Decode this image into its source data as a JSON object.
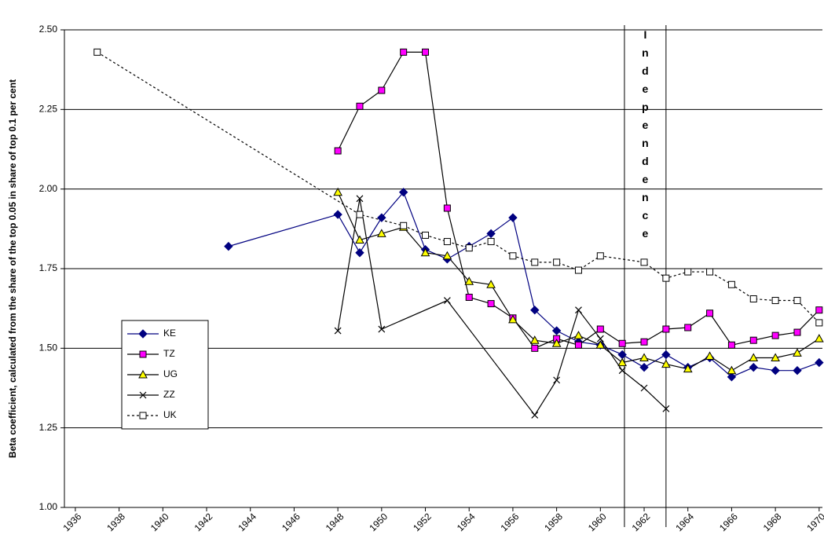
{
  "chart_data": {
    "type": "line",
    "y_label": "Beta coefficient, calculated from the share of the top 0.05 in share of top 0.1 per cent",
    "annotation": "Independence",
    "annotation_lines": [
      1961.1,
      1963
    ],
    "xlim": [
      1935.5,
      1970.15
    ],
    "xticks": [
      1936,
      1938,
      1940,
      1942,
      1944,
      1946,
      1948,
      1950,
      1952,
      1954,
      1956,
      1958,
      1960,
      1962,
      1964,
      1966,
      1968,
      1970
    ],
    "ylim": [
      1,
      2.5
    ],
    "yticks": [
      {
        "value": 1,
        "label": "1.00"
      },
      {
        "value": 1.25,
        "label": "1.25"
      },
      {
        "value": 1.5,
        "label": "1.50"
      },
      {
        "value": 1.75,
        "label": "1.75"
      },
      {
        "value": 2,
        "label": "2.00"
      },
      {
        "value": 2.25,
        "label": "2.25"
      },
      {
        "value": 2.5,
        "label": "2.50"
      }
    ],
    "grid": true,
    "series": [
      {
        "name": "KE",
        "color": "#000080",
        "marker": "diamond",
        "x": [
          1943,
          1948,
          1949,
          1950,
          1951,
          1952,
          1953,
          1954,
          1955,
          1956,
          1957,
          1958,
          1959,
          1960,
          1961,
          1962,
          1963,
          1964,
          1965,
          1966,
          1967,
          1968,
          1969,
          1970
        ],
        "values": [
          1.82,
          1.92,
          1.8,
          1.91,
          1.99,
          1.81,
          1.78,
          1.82,
          1.86,
          1.91,
          1.62,
          1.555,
          1.52,
          1.51,
          1.48,
          1.44,
          1.48,
          1.44,
          1.47,
          1.41,
          1.44,
          1.43,
          1.43,
          1.455
        ]
      },
      {
        "name": "TZ",
        "color": "#ff00ff",
        "marker": "square",
        "x": [
          1948,
          1949,
          1950,
          1951,
          1952,
          1953,
          1954,
          1955,
          1956,
          1957,
          1958,
          1959,
          1960,
          1961,
          1962,
          1963,
          1964,
          1965,
          1966,
          1967,
          1968,
          1969,
          1970
        ],
        "values": [
          2.12,
          2.26,
          2.31,
          2.43,
          2.43,
          1.94,
          1.66,
          1.64,
          1.595,
          1.5,
          1.53,
          1.51,
          1.56,
          1.515,
          1.52,
          1.56,
          1.565,
          1.61,
          1.51,
          1.525,
          1.54,
          1.55,
          1.62
        ]
      },
      {
        "name": "UG",
        "color": "#ffff00",
        "marker": "triangle",
        "x": [
          1948,
          1949,
          1950,
          1951,
          1952,
          1953,
          1954,
          1955,
          1956,
          1957,
          1958,
          1959,
          1960,
          1961,
          1962,
          1963,
          1964,
          1965,
          1966,
          1967,
          1968,
          1969,
          1970
        ],
        "values": [
          1.99,
          1.84,
          1.86,
          1.88,
          1.8,
          1.79,
          1.71,
          1.7,
          1.59,
          1.525,
          1.515,
          1.54,
          1.51,
          1.455,
          1.47,
          1.45,
          1.435,
          1.475,
          1.43,
          1.47,
          1.47,
          1.485,
          1.53
        ]
      },
      {
        "name": "ZZ",
        "color": "#000000",
        "marker": "x",
        "x": [
          1948,
          1949,
          1950,
          1953,
          1957,
          1958,
          1959,
          1960,
          1961,
          1962,
          1963
        ],
        "values": [
          1.555,
          1.97,
          1.56,
          1.65,
          1.29,
          1.4,
          1.62,
          1.53,
          1.43,
          1.375,
          1.31
        ]
      },
      {
        "name": "UK",
        "color": "#ffffff",
        "marker": "square",
        "dashed": true,
        "x": [
          1937,
          1949,
          1951,
          1952,
          1953,
          1954,
          1955,
          1956,
          1957,
          1958,
          1959,
          1960,
          1962,
          1963,
          1964,
          1965,
          1966,
          1967,
          1968,
          1969,
          1970
        ],
        "values": [
          2.43,
          1.92,
          1.885,
          1.855,
          1.835,
          1.815,
          1.835,
          1.79,
          1.77,
          1.77,
          1.745,
          1.79,
          1.77,
          1.72,
          1.74,
          1.74,
          1.7,
          1.655,
          1.65,
          1.65,
          1.58
        ]
      }
    ]
  }
}
